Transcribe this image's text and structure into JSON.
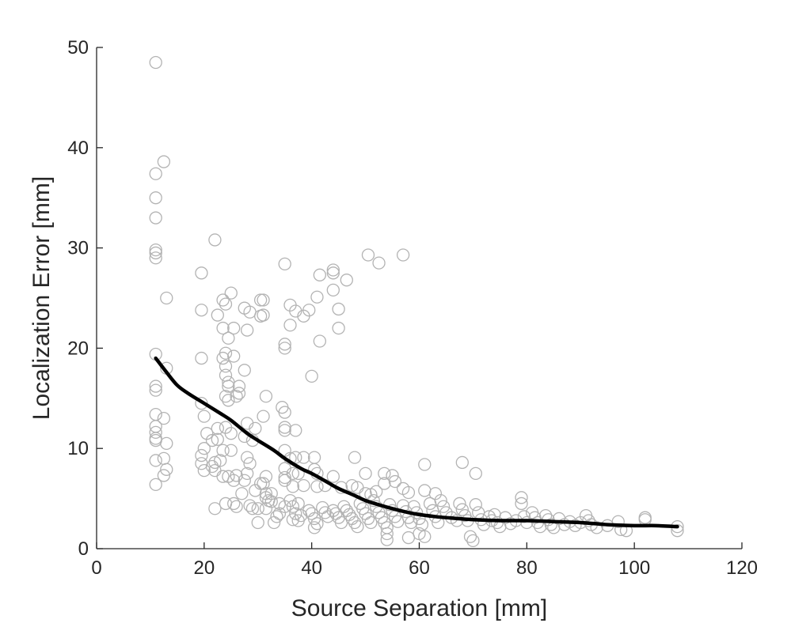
{
  "chart_data": {
    "type": "scatter",
    "title": "",
    "xlabel": "Source Separation [mm]",
    "ylabel": "Localization Error [mm]",
    "xlim": [
      0,
      120
    ],
    "ylim": [
      0,
      50
    ],
    "xticks": [
      "0",
      "20",
      "40",
      "60",
      "80",
      "100",
      "120"
    ],
    "yticks": [
      "0",
      "10",
      "20",
      "30",
      "40",
      "50"
    ],
    "grid": false,
    "legend": "none",
    "colors": {
      "points": "#b3b3b3",
      "trend": "#000000",
      "axis": "#262626"
    },
    "series": [
      {
        "type": "scatter",
        "points": [
          [
            11,
            48.5
          ],
          [
            11,
            37.4
          ],
          [
            12.5,
            38.6
          ],
          [
            11,
            35
          ],
          [
            11,
            33
          ],
          [
            11,
            29.8
          ],
          [
            11,
            29.5
          ],
          [
            11,
            29
          ],
          [
            13,
            25
          ],
          [
            11,
            19.4
          ],
          [
            11,
            16.2
          ],
          [
            11,
            15.8
          ],
          [
            11,
            13.4
          ],
          [
            11,
            12.2
          ],
          [
            11,
            11.6
          ],
          [
            11,
            11
          ],
          [
            11,
            10.8
          ],
          [
            11,
            8.8
          ],
          [
            11,
            6.4
          ],
          [
            13,
            18
          ],
          [
            12.5,
            13
          ],
          [
            13,
            10.5
          ],
          [
            12.5,
            9
          ],
          [
            13,
            7.9
          ],
          [
            12.5,
            7.3
          ],
          [
            22,
            30.8
          ],
          [
            19.5,
            27.5
          ],
          [
            19.5,
            23.8
          ],
          [
            23.5,
            24.8
          ],
          [
            24,
            24.4
          ],
          [
            25,
            25.5
          ],
          [
            22.5,
            23.3
          ],
          [
            23.5,
            22
          ],
          [
            25.5,
            22
          ],
          [
            24.5,
            21
          ],
          [
            24,
            19.5
          ],
          [
            25.5,
            19.2
          ],
          [
            23.5,
            19
          ],
          [
            19.5,
            19
          ],
          [
            24,
            18.2
          ],
          [
            24,
            17.3
          ],
          [
            24.5,
            16.6
          ],
          [
            24.5,
            16.2
          ],
          [
            24,
            15.2
          ],
          [
            24.5,
            14.8
          ],
          [
            26.5,
            16.2
          ],
          [
            26.5,
            15.5
          ],
          [
            26,
            15.2
          ],
          [
            27.5,
            17.8
          ],
          [
            28,
            21.8
          ],
          [
            27.5,
            24
          ],
          [
            28.5,
            23.6
          ],
          [
            30.5,
            24.8
          ],
          [
            31,
            24.8
          ],
          [
            30.5,
            23.2
          ],
          [
            31,
            23.3
          ],
          [
            19.5,
            14.5
          ],
          [
            20,
            13.2
          ],
          [
            20.5,
            11.5
          ],
          [
            22.5,
            12
          ],
          [
            24,
            12.1
          ],
          [
            25,
            11.5
          ],
          [
            21.5,
            10.8
          ],
          [
            22.5,
            10.9
          ],
          [
            20,
            10
          ],
          [
            23.5,
            9.8
          ],
          [
            25,
            9.8
          ],
          [
            23,
            8.8
          ],
          [
            22,
            8.6
          ],
          [
            21.5,
            8.2
          ],
          [
            19.5,
            8.5
          ],
          [
            19.5,
            9.3
          ],
          [
            20,
            7.8
          ],
          [
            22,
            7.8
          ],
          [
            23.5,
            7.2
          ],
          [
            24.5,
            7.2
          ],
          [
            25.5,
            6.8
          ],
          [
            26,
            7.3
          ],
          [
            28,
            7.5
          ],
          [
            27.5,
            11.2
          ],
          [
            28,
            12.5
          ],
          [
            29.5,
            12
          ],
          [
            29,
            10.8
          ],
          [
            31.5,
            15.2
          ],
          [
            31,
            13.2
          ],
          [
            28.5,
            8.5
          ],
          [
            28,
            9.1
          ],
          [
            27.5,
            6.8
          ],
          [
            30.5,
            6.5
          ],
          [
            31,
            6.5
          ],
          [
            31.5,
            7.2
          ],
          [
            27,
            5.5
          ],
          [
            29.5,
            5.8
          ],
          [
            31.5,
            5.5
          ],
          [
            32.5,
            5.5
          ],
          [
            31.5,
            5.1
          ],
          [
            32,
            4.8
          ],
          [
            32.5,
            4.7
          ],
          [
            28.5,
            4.3
          ],
          [
            29,
            4
          ],
          [
            30,
            4
          ],
          [
            31.5,
            4
          ],
          [
            22,
            4
          ],
          [
            24,
            4.5
          ],
          [
            25.5,
            4.5
          ],
          [
            26,
            4.2
          ],
          [
            33.5,
            3.2
          ],
          [
            30,
            2.6
          ],
          [
            33,
            2.6
          ],
          [
            34,
            3.5
          ],
          [
            35,
            28.4
          ],
          [
            37,
            23.7
          ],
          [
            36,
            24.3
          ],
          [
            38.5,
            23.2
          ],
          [
            39.5,
            23.8
          ],
          [
            36,
            22.3
          ],
          [
            35,
            20.4
          ],
          [
            35,
            20
          ],
          [
            40,
            17.2
          ],
          [
            41,
            25.1
          ],
          [
            41.5,
            27.3
          ],
          [
            44,
            27.8
          ],
          [
            44,
            27.5
          ],
          [
            44,
            25.8
          ],
          [
            45,
            23.9
          ],
          [
            45,
            22
          ],
          [
            41.5,
            20.7
          ],
          [
            46.5,
            26.8
          ],
          [
            50.5,
            29.3
          ],
          [
            52.5,
            28.5
          ],
          [
            57,
            29.3
          ],
          [
            34.5,
            14.1
          ],
          [
            35,
            13.6
          ],
          [
            35,
            12.1
          ],
          [
            35,
            11.8
          ],
          [
            37,
            11.8
          ],
          [
            35,
            9.8
          ],
          [
            36,
            9
          ],
          [
            37,
            9.1
          ],
          [
            38.5,
            9.1
          ],
          [
            40.5,
            9.1
          ],
          [
            35,
            8
          ],
          [
            36.5,
            7.5
          ],
          [
            37.5,
            7.5
          ],
          [
            35,
            7.1
          ],
          [
            35,
            6.8
          ],
          [
            36.5,
            6.2
          ],
          [
            38.5,
            6.3
          ],
          [
            40.5,
            7.9
          ],
          [
            41,
            7.5
          ],
          [
            41,
            6.2
          ],
          [
            42.5,
            6.3
          ],
          [
            44,
            7.2
          ],
          [
            45.5,
            6.1
          ],
          [
            47.5,
            6.3
          ],
          [
            48,
            9.1
          ],
          [
            50,
            7.5
          ],
          [
            48.5,
            6.1
          ],
          [
            50,
            5.5
          ],
          [
            51,
            5.4
          ],
          [
            52,
            5.7
          ],
          [
            53.5,
            7.5
          ],
          [
            53.5,
            6.5
          ],
          [
            55,
            7.3
          ],
          [
            55.5,
            6.7
          ],
          [
            57,
            6
          ],
          [
            58,
            5.6
          ],
          [
            61,
            8.4
          ],
          [
            61,
            5.8
          ],
          [
            63,
            5.5
          ],
          [
            68,
            8.6
          ],
          [
            70.5,
            7.5
          ],
          [
            34,
            4.5
          ],
          [
            35,
            4.2
          ],
          [
            36.5,
            4.2
          ],
          [
            37.5,
            4.5
          ],
          [
            36,
            4.8
          ],
          [
            37,
            3.5
          ],
          [
            38,
            3.3
          ],
          [
            36.5,
            2.9
          ],
          [
            37.5,
            2.8
          ],
          [
            39.5,
            3.8
          ],
          [
            40,
            3.5
          ],
          [
            40.5,
            3
          ],
          [
            41,
            2.5
          ],
          [
            40.5,
            2.1
          ],
          [
            42,
            4.1
          ],
          [
            42.5,
            3.6
          ],
          [
            43,
            3.2
          ],
          [
            44,
            3.8
          ],
          [
            44.5,
            3.5
          ],
          [
            45,
            3.1
          ],
          [
            45.5,
            2.6
          ],
          [
            46,
            4.2
          ],
          [
            46.5,
            3.8
          ],
          [
            47,
            3.4
          ],
          [
            47.5,
            3
          ],
          [
            48,
            2.6
          ],
          [
            48.5,
            2.2
          ],
          [
            49,
            4.5
          ],
          [
            49.5,
            4
          ],
          [
            50,
            3.5
          ],
          [
            50.5,
            3
          ],
          [
            51,
            2.6
          ],
          [
            51.5,
            4.8
          ],
          [
            52,
            4.2
          ],
          [
            52.5,
            3.6
          ],
          [
            53,
            3.1
          ],
          [
            53.5,
            2.6
          ],
          [
            54,
            2.1
          ],
          [
            54.5,
            4.4
          ],
          [
            55,
            3.8
          ],
          [
            55.5,
            3.2
          ],
          [
            56,
            2.7
          ],
          [
            54,
            1.5
          ],
          [
            54,
            0.9
          ],
          [
            57,
            4.3
          ],
          [
            57.5,
            3.7
          ],
          [
            58,
            3.1
          ],
          [
            58.5,
            2.6
          ],
          [
            58,
            1.1
          ],
          [
            59,
            4.2
          ],
          [
            59.5,
            3.6
          ],
          [
            60,
            3
          ],
          [
            60.5,
            2.4
          ],
          [
            60,
            1.5
          ],
          [
            61,
            1.2
          ],
          [
            62,
            4.5
          ],
          [
            62.5,
            3.8
          ],
          [
            63,
            3.2
          ],
          [
            63.5,
            2.6
          ],
          [
            64,
            4.8
          ],
          [
            64.5,
            4.2
          ],
          [
            65,
            3.6
          ],
          [
            66,
            3.1
          ],
          [
            67,
            2.8
          ],
          [
            67.5,
            4.5
          ],
          [
            68,
            3.9
          ],
          [
            68.5,
            3.3
          ],
          [
            69,
            2.8
          ],
          [
            69.5,
            1.2
          ],
          [
            70,
            0.8
          ],
          [
            70.5,
            4.4
          ],
          [
            71,
            3.6
          ],
          [
            71.5,
            2.9
          ],
          [
            72,
            2.4
          ],
          [
            73,
            3.2
          ],
          [
            73.5,
            2.8
          ],
          [
            74,
            3.4
          ],
          [
            74.5,
            2.6
          ],
          [
            75,
            2.2
          ],
          [
            76,
            3.1
          ],
          [
            77,
            2.5
          ],
          [
            78,
            2.8
          ],
          [
            79,
            5.1
          ],
          [
            79,
            4.5
          ],
          [
            79.5,
            3.2
          ],
          [
            80,
            2.6
          ],
          [
            81,
            3.6
          ],
          [
            81.5,
            3.1
          ],
          [
            82,
            2.6
          ],
          [
            82.5,
            2.2
          ],
          [
            83.5,
            3.3
          ],
          [
            84,
            2.9
          ],
          [
            84.5,
            2.4
          ],
          [
            85,
            2.1
          ],
          [
            86,
            3
          ],
          [
            87,
            2.4
          ],
          [
            88,
            2.7
          ],
          [
            89,
            2.3
          ],
          [
            90,
            2.6
          ],
          [
            91,
            3.3
          ],
          [
            91.5,
            2.8
          ],
          [
            92,
            2.4
          ],
          [
            93,
            2.1
          ],
          [
            95,
            2.3
          ],
          [
            97,
            2.7
          ],
          [
            97.5,
            1.9
          ],
          [
            98.5,
            1.8
          ],
          [
            102,
            3.1
          ],
          [
            102,
            2.9
          ],
          [
            108,
            1.8
          ],
          [
            108,
            2.2
          ]
        ]
      },
      {
        "type": "line",
        "points": [
          [
            11,
            19
          ],
          [
            13,
            17.6
          ],
          [
            15,
            16.3
          ],
          [
            17,
            15.5
          ],
          [
            20,
            14.5
          ],
          [
            23,
            13.5
          ],
          [
            25,
            12.8
          ],
          [
            28,
            11.5
          ],
          [
            30,
            10.8
          ],
          [
            33,
            9.8
          ],
          [
            35,
            9
          ],
          [
            38,
            8
          ],
          [
            40,
            7.5
          ],
          [
            43,
            6.6
          ],
          [
            45,
            6
          ],
          [
            48,
            5.3
          ],
          [
            50,
            4.8
          ],
          [
            53,
            4.3
          ],
          [
            55,
            4
          ],
          [
            58,
            3.6
          ],
          [
            60,
            3.4
          ],
          [
            63,
            3.2
          ],
          [
            65,
            3.1
          ],
          [
            70,
            2.9
          ],
          [
            75,
            2.8
          ],
          [
            80,
            2.8
          ],
          [
            85,
            2.7
          ],
          [
            90,
            2.6
          ],
          [
            95,
            2.4
          ],
          [
            100,
            2.3
          ],
          [
            104,
            2.3
          ],
          [
            108,
            2.2
          ]
        ]
      }
    ]
  }
}
